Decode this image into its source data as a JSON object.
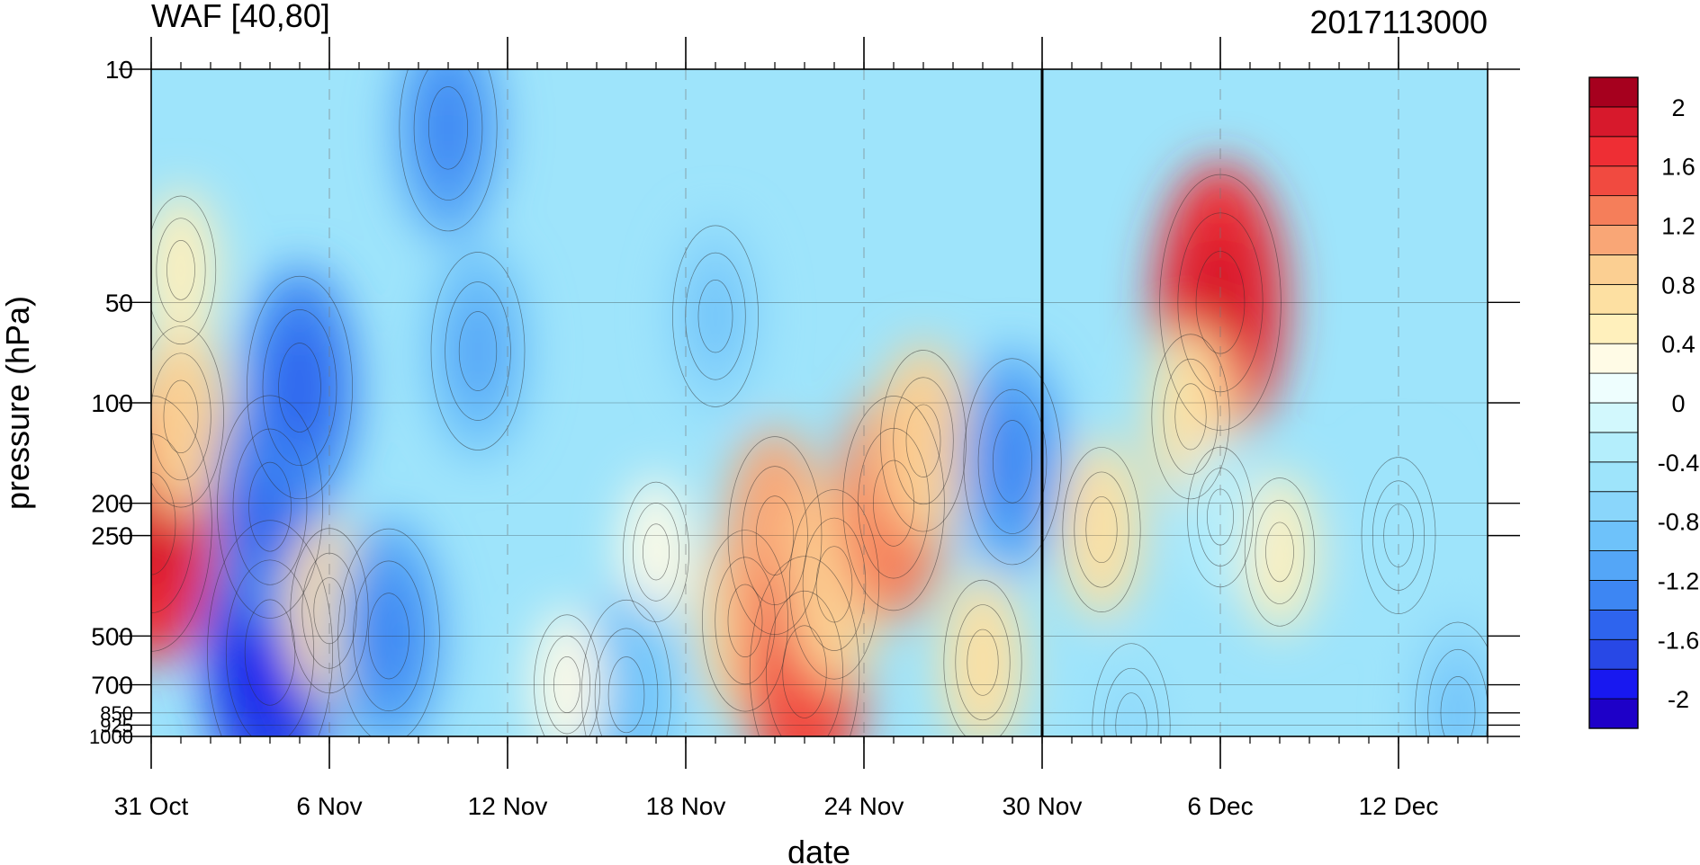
{
  "chart_data": {
    "type": "heatmap",
    "title": "WAF [40,80]",
    "subtitle": "2017113000",
    "xlabel": "date",
    "ylabel": "pressure (hPa)",
    "x_ticks": [
      "31 Oct",
      "6 Nov",
      "12 Nov",
      "18 Nov",
      "24 Nov",
      "30 Nov",
      "6 Dec",
      "12 Dec"
    ],
    "x_range": [
      "2017-10-31",
      "2017-12-15"
    ],
    "marked_date": "30 Nov",
    "y_scale": "log",
    "y_range": [
      1000,
      10
    ],
    "y_ticks": [
      10,
      50,
      100,
      200,
      250,
      500,
      700,
      850,
      925,
      1000
    ],
    "colorbar": {
      "levels": [
        -2.2,
        -2.0,
        -1.8,
        -1.6,
        -1.4,
        -1.2,
        -1.0,
        -0.8,
        -0.6,
        -0.4,
        -0.2,
        0,
        0.2,
        0.4,
        0.6,
        0.8,
        1.0,
        1.2,
        1.4,
        1.6,
        1.8,
        2.0,
        2.2
      ],
      "labels": [
        "2",
        "1.6",
        "1.2",
        "0.8",
        "0.4",
        "0",
        "-0.4",
        "-0.8",
        "-1.2",
        "-1.6",
        "-2"
      ],
      "colors": [
        "#1e00c8",
        "#1818f0",
        "#2848e6",
        "#2e64ee",
        "#3d86f3",
        "#54a6f7",
        "#6ec2fa",
        "#8ad6fb",
        "#9ee4fb",
        "#b4eefc",
        "#d2f8fd",
        "#eefefe",
        "#fffbe6",
        "#fff0bc",
        "#fde0a2",
        "#fbcf92",
        "#f9a676",
        "#f57e5a",
        "#f14a40",
        "#ee2e34",
        "#d7192c",
        "#a6001e"
      ]
    },
    "features": [
      {
        "date": "2017-10-31",
        "pressure": 230,
        "value": 1.7
      },
      {
        "date": "2017-11-01",
        "pressure": 110,
        "value": 0.8
      },
      {
        "date": "2017-11-01",
        "pressure": 40,
        "value": 0.4
      },
      {
        "date": "2017-11-04",
        "pressure": 560,
        "value": -1.8
      },
      {
        "date": "2017-11-04",
        "pressure": 205,
        "value": -1.3
      },
      {
        "date": "2017-11-05",
        "pressure": 90,
        "value": -1.3
      },
      {
        "date": "2017-11-06",
        "pressure": 420,
        "value": 0.6
      },
      {
        "date": "2017-11-08",
        "pressure": 500,
        "value": -1.2
      },
      {
        "date": "2017-11-10",
        "pressure": 15,
        "value": -1.1
      },
      {
        "date": "2017-11-11",
        "pressure": 70,
        "value": -1.0
      },
      {
        "date": "2017-11-19",
        "pressure": 55,
        "value": -0.8
      },
      {
        "date": "2017-11-17",
        "pressure": 280,
        "value": 0.3
      },
      {
        "date": "2017-11-20",
        "pressure": 450,
        "value": 0.8
      },
      {
        "date": "2017-11-21",
        "pressure": 250,
        "value": 1.0
      },
      {
        "date": "2017-11-22",
        "pressure": 640,
        "value": 1.4
      },
      {
        "date": "2017-11-23",
        "pressure": 350,
        "value": 0.9
      },
      {
        "date": "2017-11-25",
        "pressure": 200,
        "value": 1.2
      },
      {
        "date": "2017-11-26",
        "pressure": 130,
        "value": 0.8
      },
      {
        "date": "2017-11-28",
        "pressure": 600,
        "value": 0.6
      },
      {
        "date": "2017-11-29",
        "pressure": 150,
        "value": -1.1
      },
      {
        "date": "2017-12-02",
        "pressure": 240,
        "value": 0.6
      },
      {
        "date": "2017-12-06",
        "pressure": 50,
        "value": 1.7
      },
      {
        "date": "2017-12-05",
        "pressure": 110,
        "value": 0.6
      },
      {
        "date": "2017-12-08",
        "pressure": 280,
        "value": 0.4
      },
      {
        "date": "2017-12-06",
        "pressure": 220,
        "value": -0.3
      },
      {
        "date": "2017-12-14",
        "pressure": 850,
        "value": -0.8
      },
      {
        "date": "2017-12-12",
        "pressure": 250,
        "value": -0.5
      },
      {
        "date": "2017-11-16",
        "pressure": 750,
        "value": -0.9
      },
      {
        "date": "2017-11-14",
        "pressure": 700,
        "value": 0.3
      },
      {
        "date": "2017-12-03",
        "pressure": 930,
        "value": -0.6
      }
    ]
  }
}
